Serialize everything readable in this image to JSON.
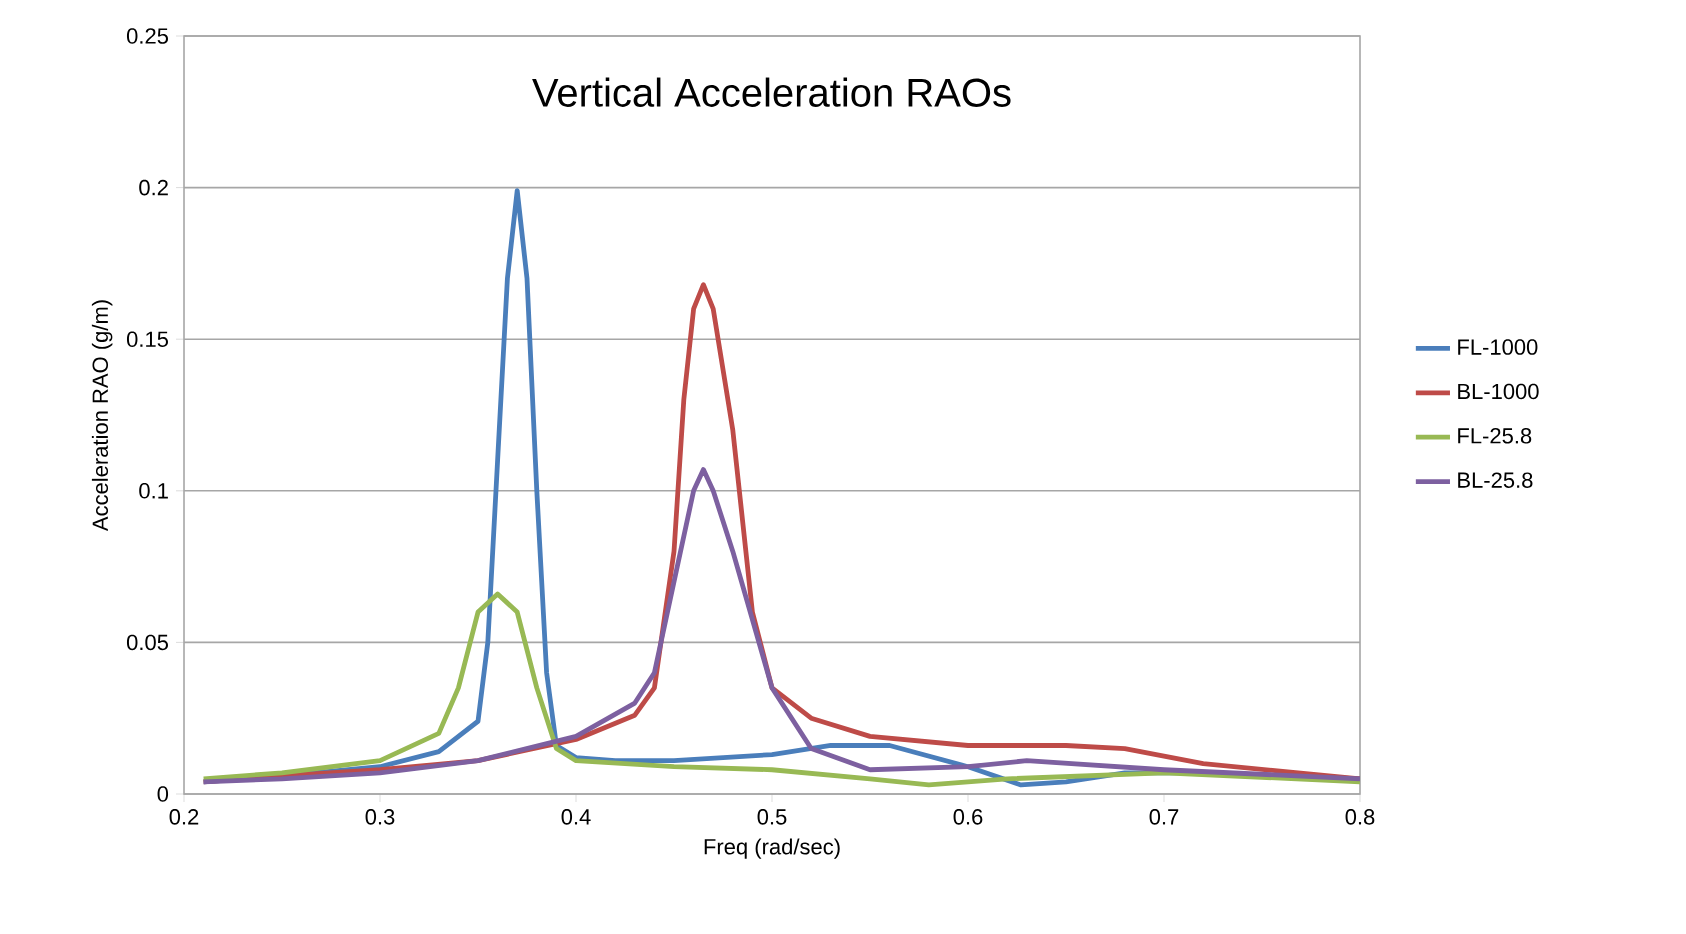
{
  "chart_data": {
    "type": "line",
    "title": "Vertical Acceleration RAOs",
    "xlabel": "Freq (rad/sec)",
    "ylabel": "Acceleration RAO (g/m)",
    "xlim": [
      0.2,
      0.8
    ],
    "xticks": [
      0.2,
      0.3,
      0.4,
      0.5,
      0.6,
      0.7,
      0.8
    ],
    "ylim": [
      0,
      0.25
    ],
    "yticks": [
      0,
      0.05,
      0.1,
      0.15,
      0.2,
      0.25
    ],
    "grid": "y",
    "legend": "right",
    "marker": "none",
    "line_style": "solid",
    "series": [
      {
        "name": "FL-1000",
        "color": "#4a7ebb",
        "x": [
          0.21,
          0.25,
          0.3,
          0.33,
          0.35,
          0.355,
          0.36,
          0.365,
          0.37,
          0.375,
          0.38,
          0.385,
          0.39,
          0.4,
          0.42,
          0.45,
          0.5,
          0.53,
          0.56,
          0.6,
          0.627,
          0.65,
          0.68,
          0.72,
          0.8
        ],
        "values": [
          0.004,
          0.006,
          0.009,
          0.014,
          0.024,
          0.05,
          0.11,
          0.17,
          0.199,
          0.17,
          0.1,
          0.04,
          0.016,
          0.012,
          0.011,
          0.011,
          0.013,
          0.016,
          0.016,
          0.009,
          0.003,
          0.004,
          0.007,
          0.007,
          0.005
        ]
      },
      {
        "name": "BL-1000",
        "color": "#be4b48",
        "x": [
          0.21,
          0.25,
          0.3,
          0.35,
          0.4,
          0.43,
          0.44,
          0.45,
          0.455,
          0.46,
          0.465,
          0.47,
          0.475,
          0.48,
          0.49,
          0.5,
          0.52,
          0.55,
          0.6,
          0.65,
          0.68,
          0.72,
          0.8
        ],
        "values": [
          0.004,
          0.006,
          0.008,
          0.011,
          0.018,
          0.026,
          0.035,
          0.08,
          0.13,
          0.16,
          0.168,
          0.16,
          0.14,
          0.12,
          0.06,
          0.035,
          0.025,
          0.019,
          0.016,
          0.016,
          0.015,
          0.01,
          0.005
        ]
      },
      {
        "name": "FL-25.8",
        "color": "#98b954",
        "x": [
          0.21,
          0.25,
          0.3,
          0.33,
          0.34,
          0.35,
          0.36,
          0.37,
          0.38,
          0.39,
          0.4,
          0.45,
          0.5,
          0.55,
          0.58,
          0.62,
          0.7,
          0.8
        ],
        "values": [
          0.005,
          0.007,
          0.011,
          0.02,
          0.035,
          0.06,
          0.066,
          0.06,
          0.035,
          0.015,
          0.011,
          0.009,
          0.008,
          0.005,
          0.003,
          0.005,
          0.007,
          0.004
        ]
      },
      {
        "name": "BL-25.8",
        "color": "#7d60a0",
        "x": [
          0.21,
          0.25,
          0.3,
          0.35,
          0.4,
          0.43,
          0.44,
          0.45,
          0.46,
          0.465,
          0.47,
          0.48,
          0.5,
          0.52,
          0.55,
          0.6,
          0.63,
          0.7,
          0.8
        ],
        "values": [
          0.004,
          0.005,
          0.007,
          0.011,
          0.019,
          0.03,
          0.04,
          0.07,
          0.1,
          0.107,
          0.1,
          0.08,
          0.035,
          0.015,
          0.008,
          0.009,
          0.011,
          0.008,
          0.005
        ]
      }
    ]
  }
}
